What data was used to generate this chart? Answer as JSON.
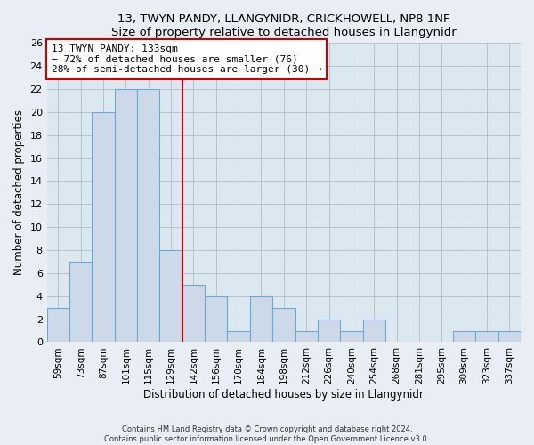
{
  "title": "13, TWYN PANDY, LLANGYNIDR, CRICKHOWELL, NP8 1NF",
  "subtitle": "Size of property relative to detached houses in Llangynidr",
  "xlabel": "Distribution of detached houses by size in Llangynidr",
  "ylabel": "Number of detached properties",
  "bin_labels": [
    "59sqm",
    "73sqm",
    "87sqm",
    "101sqm",
    "115sqm",
    "129sqm",
    "142sqm",
    "156sqm",
    "170sqm",
    "184sqm",
    "198sqm",
    "212sqm",
    "226sqm",
    "240sqm",
    "254sqm",
    "268sqm",
    "281sqm",
    "295sqm",
    "309sqm",
    "323sqm",
    "337sqm"
  ],
  "bar_heights": [
    3,
    7,
    20,
    22,
    22,
    8,
    5,
    4,
    1,
    4,
    3,
    1,
    2,
    1,
    2,
    0,
    0,
    0,
    1,
    1,
    1
  ],
  "bar_color": "#ccd9e8",
  "bar_edge_color": "#6aaad4",
  "vline_x": 5.5,
  "vline_color": "#cc0000",
  "annotation_title": "13 TWYN PANDY: 133sqm",
  "annotation_line1": "← 72% of detached houses are smaller (76)",
  "annotation_line2": "28% of semi-detached houses are larger (30) →",
  "annotation_box_edge": "#cc0000",
  "ylim": [
    0,
    26
  ],
  "yticks": [
    0,
    2,
    4,
    6,
    8,
    10,
    12,
    14,
    16,
    18,
    20,
    22,
    24,
    26
  ],
  "footer1": "Contains HM Land Registry data © Crown copyright and database right 2024.",
  "footer2": "Contains public sector information licensed under the Open Government Licence v3.0.",
  "bg_color": "#e8eef4",
  "plot_bg_color": "#dce8f0"
}
